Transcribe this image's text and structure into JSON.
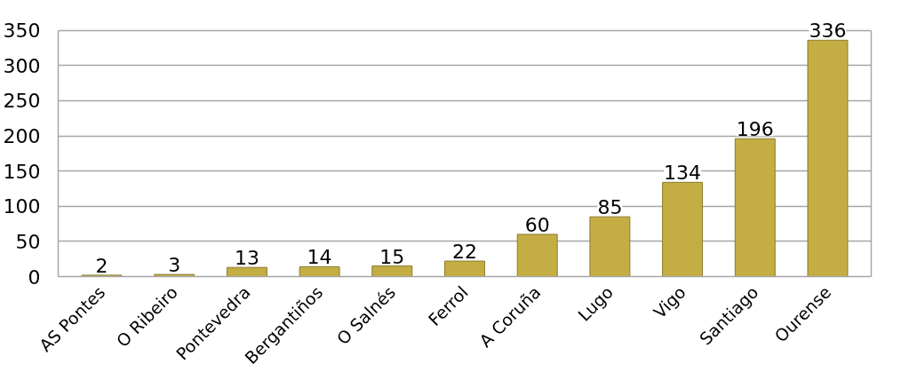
{
  "chart_data": {
    "type": "bar",
    "categories": [
      "AS Pontes",
      "O Ribeiro",
      "Pontevedra",
      "Bergantiños",
      "O Salnés",
      "Ferrol",
      "A Coruña",
      "Lugo",
      "Vigo",
      "Santiago",
      "Ourense"
    ],
    "values": [
      2,
      3,
      13,
      14,
      15,
      22,
      60,
      85,
      134,
      196,
      336
    ],
    "color": "#c4ae44",
    "ylim": [
      0,
      350
    ],
    "yticks": [
      0,
      50,
      100,
      150,
      200,
      250,
      300,
      350
    ],
    "grid": "y",
    "data_labels": true
  }
}
